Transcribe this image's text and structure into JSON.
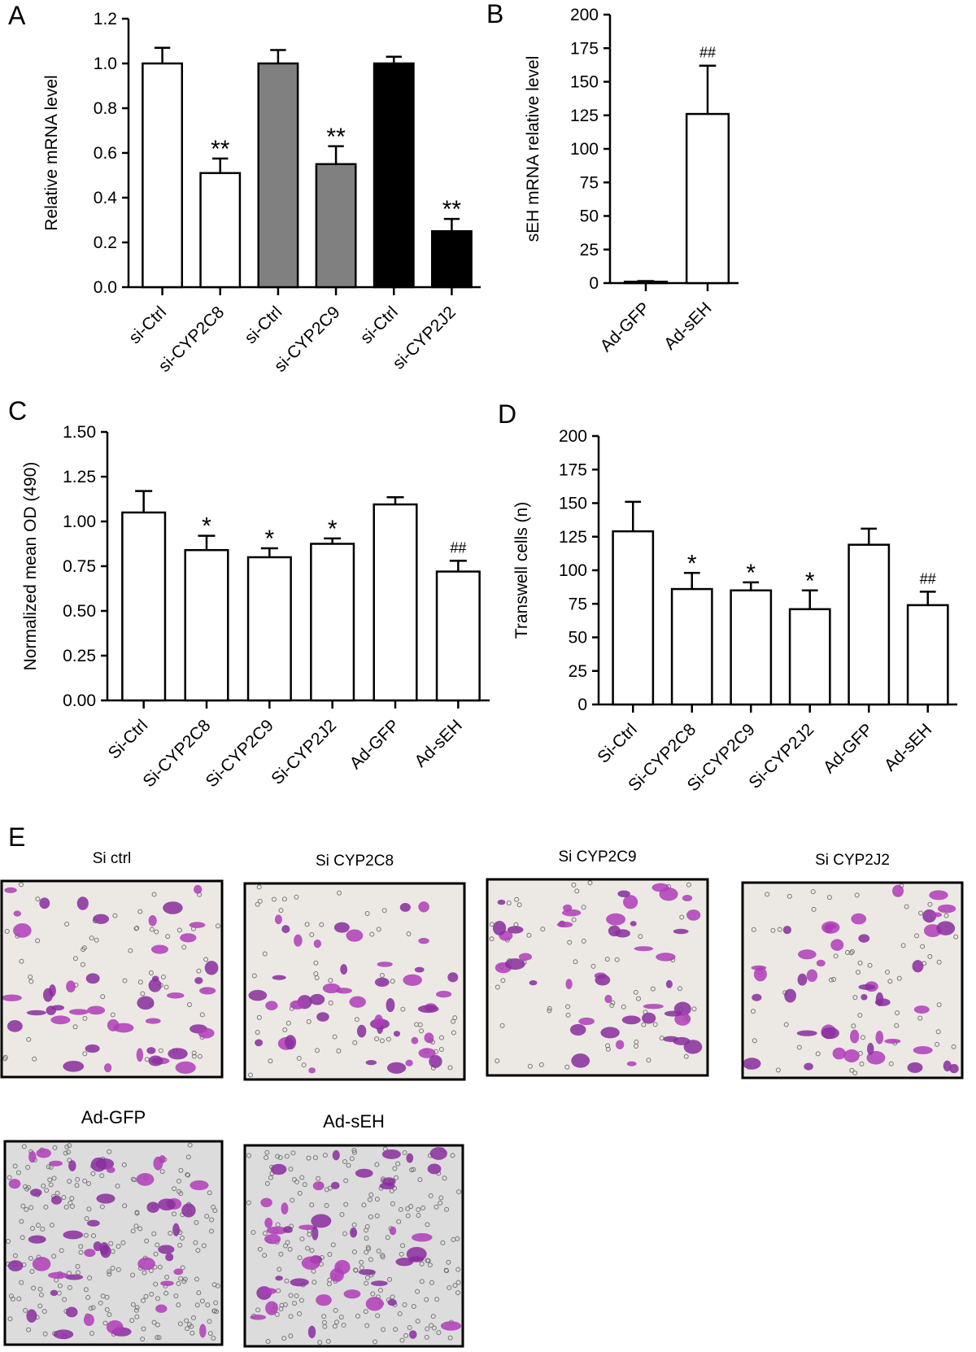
{
  "chart_data": [
    {
      "type": "bar",
      "panel_label": "A",
      "ylabel": "Relative mRNA level",
      "categories": [
        "si-Ctrl",
        "si-CYP2C8",
        "si-Ctrl",
        "si-CYP2C9",
        "si-Ctrl",
        "si-CYP2J2"
      ],
      "values": [
        1.0,
        0.51,
        1.0,
        0.55,
        1.0,
        0.25
      ],
      "errors": [
        0.07,
        0.065,
        0.06,
        0.08,
        0.03,
        0.055
      ],
      "colors": [
        "#ffffff",
        "#ffffff",
        "#808080",
        "#808080",
        "#000000",
        "#000000"
      ],
      "annotations": [
        null,
        "**",
        null,
        "**",
        null,
        "**"
      ],
      "ylim": [
        0,
        1.2
      ],
      "yticks": [
        {
          "value": 0,
          "label": "0.0"
        },
        0.2,
        0.4,
        0.6,
        0.8,
        {
          "value": 1,
          "label": "1.0"
        },
        1.2
      ]
    },
    {
      "type": "bar",
      "panel_label": "B",
      "ylabel": "sEH mRNA relative level",
      "categories": [
        "Ad-GFP",
        "Ad-sEH"
      ],
      "values": [
        1,
        126
      ],
      "errors": [
        0.5,
        36
      ],
      "colors": [
        "#ffffff",
        "#ffffff"
      ],
      "annotations": [
        null,
        "##"
      ],
      "ylim": [
        0,
        200
      ],
      "yticks": [
        0,
        25,
        50,
        75,
        100,
        125,
        150,
        175,
        200
      ]
    },
    {
      "type": "bar",
      "panel_label": "C",
      "ylabel": "Normalized mean OD (490)",
      "categories": [
        "Si-Ctrl",
        "Si-CYP2C8",
        "Si-CYP2C9",
        "Si-CYP2J2",
        "Ad-GFP",
        "Ad-sEH"
      ],
      "values": [
        1.05,
        0.84,
        0.8,
        0.875,
        1.095,
        0.72
      ],
      "errors": [
        0.12,
        0.08,
        0.05,
        0.03,
        0.04,
        0.06
      ],
      "colors": [
        "#ffffff",
        "#ffffff",
        "#ffffff",
        "#ffffff",
        "#ffffff",
        "#ffffff"
      ],
      "annotations": [
        null,
        "*",
        "*",
        "*",
        null,
        "##"
      ],
      "ylim": [
        0,
        1.5
      ],
      "yticks": [
        {
          "value": 0,
          "label": "0.00"
        },
        0.25,
        {
          "value": 0.5,
          "label": "0.50"
        },
        0.75,
        {
          "value": 1,
          "label": "1.00"
        },
        1.25,
        {
          "value": 1.5,
          "label": "1.50"
        }
      ]
    },
    {
      "type": "bar",
      "panel_label": "D",
      "ylabel": "Transwell cells (n)",
      "categories": [
        "Si-Ctrl",
        "Si-CYP2C8",
        "Si-CYP2C9",
        "Si-CYP2J2",
        "Ad-GFP",
        "Ad-sEH"
      ],
      "values": [
        129,
        86,
        85,
        71,
        119,
        74
      ],
      "errors": [
        22,
        12,
        6,
        14,
        12,
        10
      ],
      "colors": [
        "#ffffff",
        "#ffffff",
        "#ffffff",
        "#ffffff",
        "#ffffff",
        "#ffffff"
      ],
      "annotations": [
        null,
        "*",
        "*",
        "*",
        null,
        "##"
      ],
      "ylim": [
        0,
        200
      ],
      "yticks": [
        0,
        25,
        50,
        75,
        100,
        125,
        150,
        175,
        200
      ]
    }
  ],
  "panel_e": {
    "label": "E",
    "images": [
      {
        "title": "Si ctrl"
      },
      {
        "title": "Si CYP2C8"
      },
      {
        "title": "Si CYP2C9"
      },
      {
        "title": "Si CYP2J2"
      },
      {
        "title": "Ad-GFP"
      },
      {
        "title": "Ad-sEH"
      }
    ]
  }
}
